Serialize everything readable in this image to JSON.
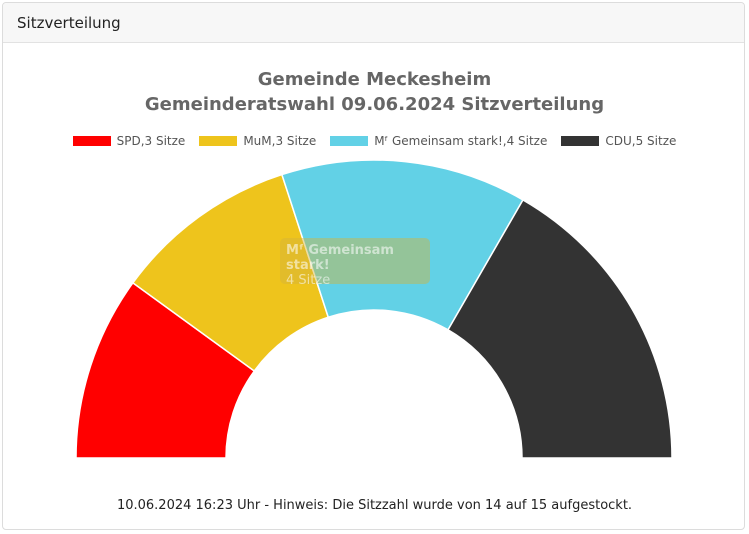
{
  "panel": {
    "header_title": "Sitzverteilung"
  },
  "chart_data": {
    "type": "pie",
    "variant": "semicircle-parliament",
    "title": "Gemeinde Meckesheim",
    "subtitle": "Gemeinderatswahl 09.06.2024 Sitzverteilung",
    "series": [
      {
        "name": "SPD",
        "seats": 3,
        "legend_label": "SPD,3 Sitze",
        "color": "#ff0000"
      },
      {
        "name": "MuM",
        "seats": 3,
        "legend_label": "MuM,3 Sitze",
        "color": "#eec41c"
      },
      {
        "name": "Mᶠ Gemeinsam stark!",
        "seats": 4,
        "legend_label": "Mᶠ Gemeinsam stark!,4 Sitze",
        "color": "#62d1e6"
      },
      {
        "name": "CDU",
        "seats": 5,
        "legend_label": "CDU,5 Sitze",
        "color": "#333333"
      }
    ],
    "total_seats": 15,
    "legend_position": "top",
    "tooltip": {
      "title": "Mᶠ Gemeinsam stark!",
      "value": "4 Sitze"
    }
  },
  "footer": {
    "note": "10.06.2024 16:23 Uhr - Hinweis: Die Sitzzahl wurde von 14 auf 15 aufgestockt."
  }
}
